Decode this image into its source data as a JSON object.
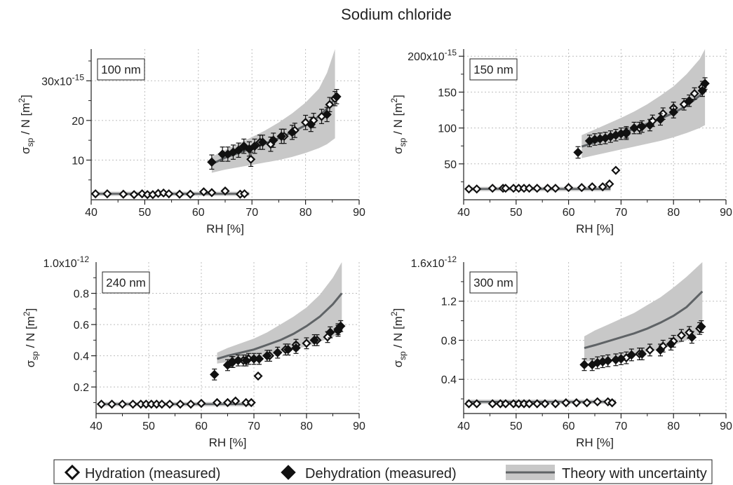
{
  "figure": {
    "title": "Sodium chloride",
    "legend": {
      "hydration": "Hydration (measured)",
      "dehydration": "Dehydration (measured)",
      "theory": "Theory with uncertainty"
    }
  },
  "colors": {
    "band": "#c8c8c8",
    "theory_line": "#5f6366",
    "marker": "#111111",
    "grid": "#bdbdbd"
  },
  "chart_data": [
    {
      "type": "scatter",
      "label": "100 nm",
      "xlabel": "RH [%]",
      "ylabel": "σsp / N [m²]",
      "scale_label": "x10",
      "scale_exp": "-15",
      "xlim": [
        40,
        90
      ],
      "ylim": [
        0,
        38
      ],
      "x_ticks": [
        40,
        50,
        60,
        70,
        80,
        90
      ],
      "y_ticks": [
        {
          "v": 10,
          "t": "10"
        },
        {
          "v": 20,
          "t": "20"
        },
        {
          "v": 30,
          "t": "30"
        }
      ],
      "y_minor": [
        5,
        15,
        25,
        35
      ],
      "grid": true,
      "hydration": [
        [
          40.8,
          1.5
        ],
        [
          43,
          1.5
        ],
        [
          46,
          1.4
        ],
        [
          48,
          1.3
        ],
        [
          49.5,
          1.5
        ],
        [
          50.5,
          1.3
        ],
        [
          51.5,
          1.3
        ],
        [
          52.5,
          1.6
        ],
        [
          53.5,
          1.7
        ],
        [
          54.5,
          1.5
        ],
        [
          56.5,
          1.4
        ],
        [
          58.5,
          1.4
        ],
        [
          61,
          2.0
        ],
        [
          62.5,
          1.8
        ],
        [
          65,
          2.2
        ],
        [
          67.8,
          1.4
        ],
        [
          68.6,
          1.5
        ],
        [
          69.8,
          10.2
        ],
        [
          71.5,
          14.5
        ],
        [
          73.5,
          14.0
        ],
        [
          76,
          16.0
        ],
        [
          78,
          17.5
        ],
        [
          80,
          19.5
        ],
        [
          81.5,
          20.0
        ],
        [
          83,
          21.0
        ],
        [
          84.5,
          24.0
        ],
        [
          85.5,
          25.5
        ]
      ],
      "dehydration": [
        [
          62.5,
          9.5
        ],
        [
          64.5,
          11.5
        ],
        [
          65.5,
          11.5
        ],
        [
          66.5,
          12.0
        ],
        [
          67.5,
          12.5
        ],
        [
          68.5,
          13.5
        ],
        [
          69.5,
          12.8
        ],
        [
          70.5,
          13.5
        ],
        [
          72,
          14.5
        ],
        [
          74,
          15.0
        ],
        [
          75.5,
          16.0
        ],
        [
          77.5,
          17.0
        ],
        [
          81,
          19.0
        ],
        [
          84,
          21.5
        ],
        [
          85.8,
          26.0
        ]
      ],
      "err": 1.8,
      "theory": {
        "x": [
          62.5,
          65,
          67.5,
          70,
          72.5,
          75,
          77.5,
          80,
          82.5,
          84,
          85.5
        ],
        "y": [
          9.0,
          10.6,
          11.8,
          13.0,
          14.2,
          15.5,
          17.0,
          18.8,
          21.0,
          23.0,
          25.5
        ],
        "lo": [
          6.8,
          7.6,
          8.2,
          8.8,
          9.4,
          10.0,
          10.8,
          11.8,
          13.0,
          14.0,
          15.5
        ],
        "hi": [
          10.8,
          12.6,
          14.2,
          15.8,
          17.5,
          19.5,
          21.8,
          24.5,
          28.0,
          32.0,
          38.0
        ]
      },
      "flat": {
        "x": [
          40.5,
          69.5
        ],
        "y": 1.5
      }
    },
    {
      "type": "scatter",
      "label": "150 nm",
      "xlabel": "RH [%]",
      "ylabel": "σsp / N [m²]",
      "scale_label": "x10",
      "scale_exp": "-15",
      "xlim": [
        40,
        90
      ],
      "ylim": [
        0,
        210
      ],
      "x_ticks": [
        40,
        50,
        60,
        70,
        80,
        90
      ],
      "y_ticks": [
        {
          "v": 50,
          "t": "50"
        },
        {
          "v": 100,
          "t": "100"
        },
        {
          "v": 150,
          "t": "150"
        },
        {
          "v": 200,
          "t": "200"
        }
      ],
      "y_minor": [
        25,
        75,
        125,
        175
      ],
      "grid": true,
      "hydration": [
        [
          41,
          15
        ],
        [
          42.5,
          15
        ],
        [
          45.5,
          16
        ],
        [
          47.5,
          16
        ],
        [
          48,
          16
        ],
        [
          49.5,
          16
        ],
        [
          50.5,
          16
        ],
        [
          51.5,
          16
        ],
        [
          52.5,
          16
        ],
        [
          54,
          16
        ],
        [
          56,
          16
        ],
        [
          57.5,
          16
        ],
        [
          60,
          17
        ],
        [
          62.5,
          17
        ],
        [
          64.5,
          18
        ],
        [
          66.5,
          18
        ],
        [
          67.8,
          22
        ],
        [
          69,
          41
        ],
        [
          71,
          92
        ],
        [
          73.5,
          100
        ],
        [
          76,
          110
        ],
        [
          78,
          120
        ],
        [
          80,
          128
        ],
        [
          82,
          133
        ],
        [
          84,
          148
        ],
        [
          85.5,
          157
        ]
      ],
      "dehydration": [
        [
          61.8,
          66
        ],
        [
          64,
          82
        ],
        [
          65,
          84
        ],
        [
          66,
          85
        ],
        [
          67,
          86
        ],
        [
          68,
          88
        ],
        [
          69,
          90
        ],
        [
          70,
          92
        ],
        [
          71,
          94
        ],
        [
          72.5,
          100
        ],
        [
          74,
          102
        ],
        [
          75.5,
          104
        ],
        [
          77.5,
          112
        ],
        [
          80,
          122
        ],
        [
          83,
          138
        ],
        [
          85.5,
          152
        ],
        [
          86,
          162
        ]
      ],
      "err": 8,
      "theory": {
        "x": [
          62.5,
          65,
          67.5,
          70,
          72.5,
          75,
          77.5,
          80,
          82.5,
          85,
          86
        ],
        "y": [
          74,
          80,
          86,
          92,
          99,
          106,
          113,
          121,
          131,
          145,
          152
        ],
        "lo": [
          58,
          62,
          66,
          70,
          74,
          78,
          82,
          87,
          93,
          100,
          104
        ],
        "hi": [
          90,
          98,
          106,
          114,
          123,
          133,
          145,
          158,
          175,
          196,
          210
        ]
      },
      "flat": {
        "x": [
          40.5,
          68
        ],
        "y": 15
      }
    },
    {
      "type": "scatter",
      "label": "240 nm",
      "xlabel": "RH [%]",
      "ylabel": "σsp / N [m²]",
      "scale_label": "1.0x10",
      "scale_exp": "-12",
      "xlim": [
        40,
        90
      ],
      "ylim": [
        0.03,
        1.0
      ],
      "x_ticks": [
        40,
        50,
        60,
        70,
        80,
        90
      ],
      "y_ticks": [
        {
          "v": 0.2,
          "t": "0.2"
        },
        {
          "v": 0.4,
          "t": "0.4"
        },
        {
          "v": 0.6,
          "t": "0.6"
        },
        {
          "v": 0.8,
          "t": "0.8"
        }
      ],
      "y_minor": [
        0.1,
        0.3,
        0.5,
        0.7,
        0.9
      ],
      "grid": true,
      "hydration": [
        [
          41,
          0.09
        ],
        [
          43,
          0.09
        ],
        [
          45,
          0.09
        ],
        [
          47,
          0.09
        ],
        [
          48.5,
          0.09
        ],
        [
          49.5,
          0.09
        ],
        [
          50.5,
          0.09
        ],
        [
          51.5,
          0.09
        ],
        [
          52.5,
          0.09
        ],
        [
          54,
          0.09
        ],
        [
          56,
          0.09
        ],
        [
          58,
          0.09
        ],
        [
          60,
          0.095
        ],
        [
          63,
          0.1
        ],
        [
          65,
          0.1
        ],
        [
          66.5,
          0.11
        ],
        [
          68.5,
          0.1
        ],
        [
          69.5,
          0.1
        ],
        [
          70.8,
          0.27
        ],
        [
          66,
          0.36
        ],
        [
          68,
          0.37
        ],
        [
          69,
          0.38
        ],
        [
          73,
          0.4
        ],
        [
          76,
          0.44
        ],
        [
          78,
          0.47
        ],
        [
          80,
          0.48
        ],
        [
          82,
          0.5
        ],
        [
          84,
          0.52
        ],
        [
          86,
          0.56
        ]
      ],
      "dehydration": [
        [
          62.5,
          0.28
        ],
        [
          65,
          0.34
        ],
        [
          65.8,
          0.36
        ],
        [
          67,
          0.37
        ],
        [
          68.5,
          0.37
        ],
        [
          70,
          0.38
        ],
        [
          71,
          0.38
        ],
        [
          72.5,
          0.4
        ],
        [
          74.5,
          0.42
        ],
        [
          76.5,
          0.44
        ],
        [
          78,
          0.45
        ],
        [
          81.5,
          0.5
        ],
        [
          84.5,
          0.55
        ],
        [
          86,
          0.57
        ],
        [
          86.5,
          0.59
        ]
      ],
      "err": 0.035,
      "theory": {
        "x": [
          63,
          65,
          67.5,
          70,
          72.5,
          75,
          77.5,
          80,
          82.5,
          85,
          86.7
        ],
        "y": [
          0.38,
          0.4,
          0.42,
          0.44,
          0.47,
          0.5,
          0.54,
          0.59,
          0.65,
          0.73,
          0.8
        ],
        "lo": [
          0.35,
          0.36,
          0.37,
          0.38,
          0.4,
          0.42,
          0.44,
          0.46,
          0.49,
          0.52,
          0.55
        ],
        "hi": [
          0.42,
          0.45,
          0.48,
          0.51,
          0.55,
          0.6,
          0.65,
          0.71,
          0.79,
          0.9,
          1.0
        ]
      },
      "flat": {
        "x": [
          40.5,
          70
        ],
        "y": 0.09
      }
    },
    {
      "type": "scatter",
      "label": "300 nm",
      "xlabel": "RH [%]",
      "ylabel": "σsp / N [m²]",
      "scale_label": "1.6x10",
      "scale_exp": "-12",
      "xlim": [
        40,
        90
      ],
      "ylim": [
        0.05,
        1.6
      ],
      "x_ticks": [
        40,
        50,
        60,
        70,
        80,
        90
      ],
      "y_ticks": [
        {
          "v": 0.4,
          "t": "0.4"
        },
        {
          "v": 0.8,
          "t": "0.8"
        },
        {
          "v": 1.2,
          "t": "1.2"
        }
      ],
      "y_minor": [
        0.2,
        0.6,
        1.0,
        1.4
      ],
      "grid": true,
      "hydration": [
        [
          41,
          0.15
        ],
        [
          42.5,
          0.15
        ],
        [
          45.5,
          0.15
        ],
        [
          47,
          0.15
        ],
        [
          48,
          0.15
        ],
        [
          49.5,
          0.15
        ],
        [
          50.5,
          0.15
        ],
        [
          51.5,
          0.15
        ],
        [
          52.5,
          0.15
        ],
        [
          54,
          0.15
        ],
        [
          55.5,
          0.15
        ],
        [
          57.5,
          0.15
        ],
        [
          59.5,
          0.16
        ],
        [
          61.5,
          0.16
        ],
        [
          63.5,
          0.16
        ],
        [
          65.5,
          0.17
        ],
        [
          67.5,
          0.17
        ],
        [
          68.3,
          0.16
        ],
        [
          71,
          0.62
        ],
        [
          73.5,
          0.66
        ],
        [
          75.5,
          0.7
        ],
        [
          78,
          0.74
        ],
        [
          80,
          0.79
        ],
        [
          81.5,
          0.85
        ],
        [
          83,
          0.88
        ],
        [
          85,
          0.92
        ]
      ],
      "dehydration": [
        [
          63,
          0.55
        ],
        [
          64.5,
          0.55
        ],
        [
          65.5,
          0.57
        ],
        [
          66.5,
          0.58
        ],
        [
          67.5,
          0.59
        ],
        [
          69,
          0.6
        ],
        [
          70,
          0.61
        ],
        [
          72,
          0.65
        ],
        [
          74,
          0.66
        ],
        [
          77.5,
          0.7
        ],
        [
          79.5,
          0.76
        ],
        [
          83.5,
          0.83
        ],
        [
          85.3,
          0.94
        ]
      ],
      "err": 0.06,
      "theory": {
        "x": [
          63,
          65,
          67.5,
          70,
          72.5,
          75,
          77.5,
          80,
          82.5,
          85.5
        ],
        "y": [
          0.72,
          0.75,
          0.79,
          0.83,
          0.87,
          0.92,
          0.98,
          1.05,
          1.14,
          1.3
        ],
        "lo": [
          0.58,
          0.59,
          0.61,
          0.63,
          0.65,
          0.68,
          0.71,
          0.75,
          0.8,
          0.88
        ],
        "hi": [
          0.84,
          0.9,
          0.96,
          1.02,
          1.08,
          1.16,
          1.24,
          1.34,
          1.45,
          1.6
        ]
      },
      "flat": {
        "x": [
          40.5,
          69
        ],
        "y": 0.17
      }
    }
  ]
}
